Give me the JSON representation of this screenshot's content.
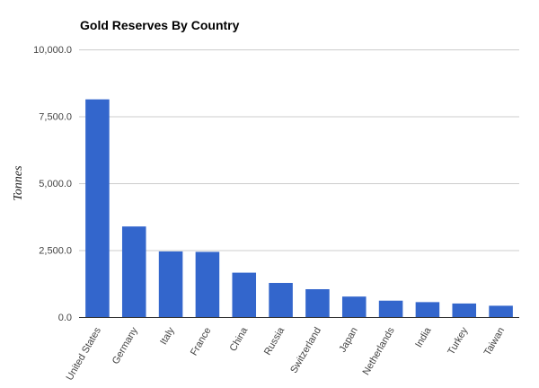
{
  "chart_data": {
    "type": "bar",
    "title": "Gold Reserves By Country",
    "xlabel": "",
    "ylabel": "Tonnes",
    "categories": [
      "United States",
      "Germany",
      "Italy",
      "France",
      "China",
      "Russia",
      "Switzerland",
      "Japan",
      "Netherlands",
      "India",
      "Turkey",
      "Taiwan"
    ],
    "values": [
      8133.5,
      3384.2,
      2451.8,
      2435.4,
      1658.1,
      1275.0,
      1040.0,
      765.2,
      612.5,
      557.7,
      506.2,
      422.4
    ],
    "ylim": [
      0,
      10000
    ],
    "yticks": [
      0,
      2500,
      5000,
      7500,
      10000
    ],
    "ytick_labels": [
      "0.0",
      "2,500.0",
      "5,000.0",
      "7,500.0",
      "10,000.0"
    ],
    "grid": true,
    "legend": "none",
    "bar_color": "#3366cc",
    "grid_color": "#cccccc",
    "axis_color": "#333333"
  }
}
